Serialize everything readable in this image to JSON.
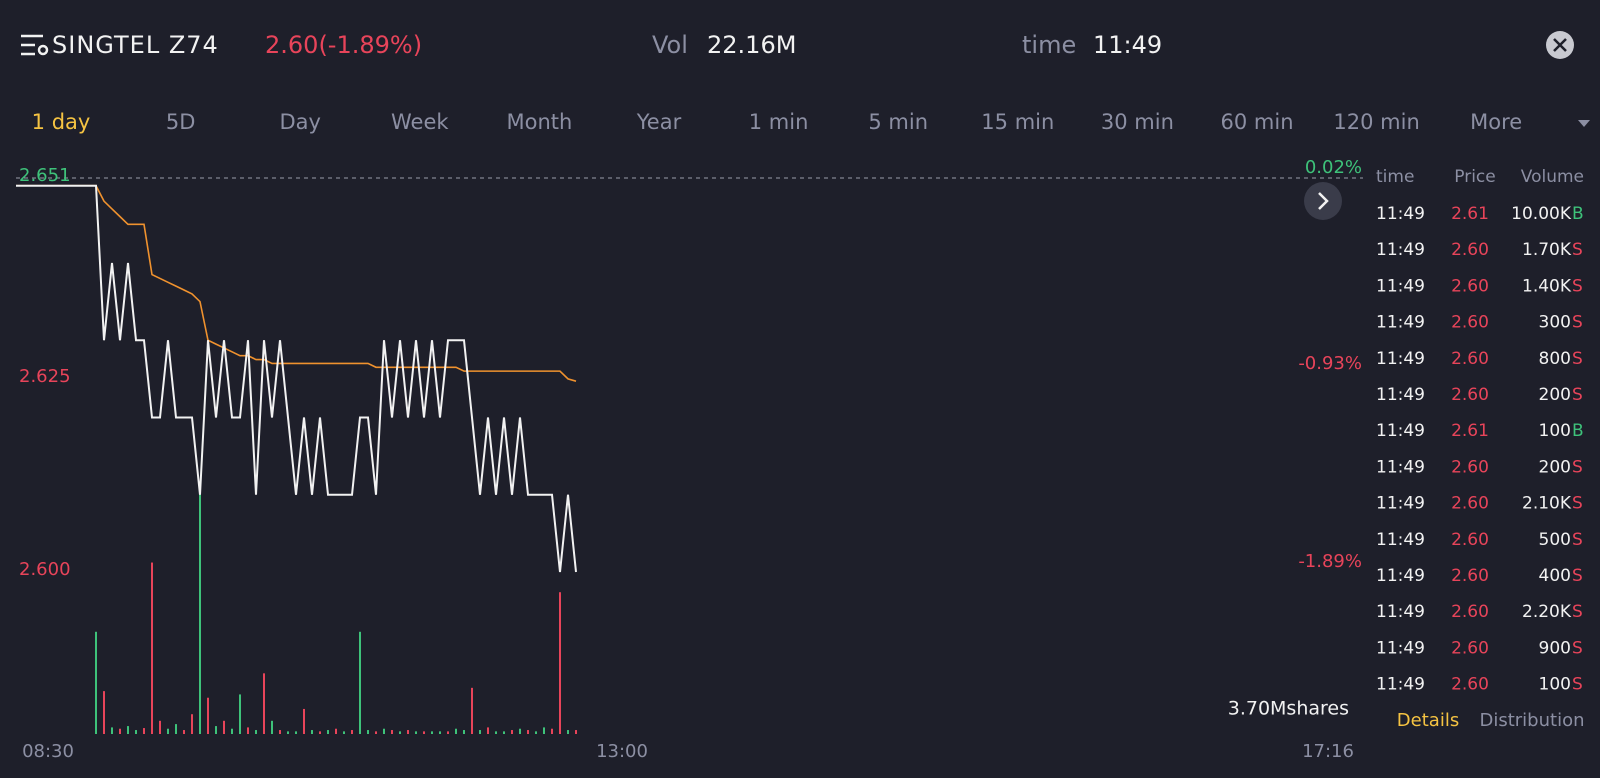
{
  "header": {
    "symbol": "SINGTEL Z74",
    "quote": "2.60(-1.89%)",
    "vol_label": "Vol",
    "vol_value": "22.16M",
    "time_label": "time",
    "time_value": "11:49"
  },
  "tabs": [
    "1 day",
    "5D",
    "Day",
    "Week",
    "Month",
    "Year",
    "1 min",
    "5 min",
    "15 min",
    "30 min",
    "60 min",
    "120 min",
    "More"
  ],
  "active_tab": 0,
  "chart": {
    "type": "line",
    "ylim": [
      2.6,
      2.651
    ],
    "yticks": [
      2.651,
      2.625,
      {
        "value": 2.6,
        "label": "2.600"
      }
    ],
    "y2lim": [
      -1.89,
      0.02
    ],
    "y2ticks": [
      {
        "value": 0.02,
        "label": "0.02%"
      },
      {
        "value": -0.93,
        "label": "-0.93%"
      },
      {
        "value": -1.89,
        "label": "-1.89%"
      }
    ],
    "time_labels": [
      "08:30",
      "13:00",
      "17:16"
    ],
    "volume_max": {
      "value": 3700000,
      "label": "3.70Mshares"
    },
    "series": [
      {
        "name": "price",
        "color": "#f2f2f2",
        "values": [
          2.65,
          2.65,
          2.65,
          2.65,
          2.65,
          2.65,
          2.65,
          2.65,
          2.65,
          2.65,
          2.65,
          2.63,
          2.64,
          2.63,
          2.64,
          2.63,
          2.63,
          2.62,
          2.62,
          2.63,
          2.62,
          2.62,
          2.62,
          2.61,
          2.63,
          2.62,
          2.63,
          2.62,
          2.62,
          2.63,
          2.61,
          2.63,
          2.62,
          2.63,
          2.62,
          2.61,
          2.62,
          2.61,
          2.62,
          2.61,
          2.61,
          2.61,
          2.61,
          2.62,
          2.62,
          2.61,
          2.63,
          2.62,
          2.63,
          2.62,
          2.63,
          2.62,
          2.63,
          2.62,
          2.63,
          2.63,
          2.63,
          2.62,
          2.61,
          2.62,
          2.61,
          2.62,
          2.61,
          2.62,
          2.61,
          2.61,
          2.61,
          2.61,
          2.6,
          2.61,
          2.6
        ]
      },
      {
        "name": "average",
        "color": "#f0922e",
        "values": [
          2.65,
          2.65,
          2.65,
          2.65,
          2.65,
          2.65,
          2.65,
          2.65,
          2.65,
          2.65,
          2.65,
          2.648,
          2.647,
          2.646,
          2.645,
          2.645,
          2.645,
          2.6385,
          2.638,
          2.6375,
          2.637,
          2.6365,
          2.636,
          2.635,
          2.63,
          2.6295,
          2.629,
          2.6285,
          2.628,
          2.628,
          2.6275,
          2.6275,
          2.627,
          2.627,
          2.627,
          2.627,
          2.627,
          2.627,
          2.627,
          2.627,
          2.627,
          2.627,
          2.627,
          2.627,
          2.627,
          2.6265,
          2.6265,
          2.6265,
          2.6265,
          2.6265,
          2.6265,
          2.6265,
          2.6265,
          2.6265,
          2.6265,
          2.6265,
          2.626,
          2.626,
          2.626,
          2.626,
          2.626,
          2.626,
          2.626,
          2.626,
          2.626,
          2.626,
          2.626,
          2.626,
          2.626,
          2.625,
          2.6247
        ]
      }
    ],
    "volume": {
      "up_color": "#3ec27a",
      "down_color": "#e8445a",
      "values": [
        0,
        0,
        0,
        0,
        0,
        0,
        0,
        0,
        0,
        0,
        1550000,
        650000,
        100000,
        80000,
        120000,
        60000,
        90000,
        2600000,
        200000,
        80000,
        150000,
        60000,
        300000,
        3700000,
        550000,
        120000,
        200000,
        80000,
        600000,
        100000,
        60000,
        920000,
        200000,
        60000,
        40000,
        40000,
        380000,
        60000,
        40000,
        60000,
        80000,
        40000,
        60000,
        1550000,
        60000,
        40000,
        80000,
        60000,
        40000,
        60000,
        40000,
        40000,
        40000,
        40000,
        40000,
        80000,
        60000,
        700000,
        60000,
        100000,
        40000,
        40000,
        60000,
        80000,
        60000,
        40000,
        100000,
        80000,
        2150000,
        60000,
        60000
      ],
      "up": [
        true,
        true,
        true,
        true,
        true,
        true,
        true,
        true,
        true,
        true,
        true,
        false,
        true,
        false,
        true,
        true,
        false,
        false,
        false,
        true,
        true,
        false,
        false,
        true,
        false,
        true,
        false,
        true,
        true,
        false,
        true,
        false,
        true,
        false,
        true,
        true,
        false,
        true,
        false,
        true,
        false,
        true,
        false,
        true,
        true,
        false,
        true,
        false,
        true,
        false,
        true,
        false,
        true,
        true,
        false,
        true,
        true,
        false,
        true,
        false,
        true,
        true,
        false,
        true,
        false,
        true,
        true,
        false,
        false,
        true,
        false
      ]
    }
  },
  "trades": {
    "headers": [
      "time",
      "Price",
      "Volume"
    ],
    "rows": [
      [
        "11:49",
        "2.61",
        "10.00K",
        "B"
      ],
      [
        "11:49",
        "2.60",
        "1.70K",
        "S"
      ],
      [
        "11:49",
        "2.60",
        "1.40K",
        "S"
      ],
      [
        "11:49",
        "2.60",
        "300",
        "S"
      ],
      [
        "11:49",
        "2.60",
        "800",
        "S"
      ],
      [
        "11:49",
        "2.60",
        "200",
        "S"
      ],
      [
        "11:49",
        "2.61",
        "100",
        "B"
      ],
      [
        "11:49",
        "2.60",
        "200",
        "S"
      ],
      [
        "11:49",
        "2.60",
        "2.10K",
        "S"
      ],
      [
        "11:49",
        "2.60",
        "500",
        "S"
      ],
      [
        "11:49",
        "2.60",
        "400",
        "S"
      ],
      [
        "11:49",
        "2.60",
        "2.20K",
        "S"
      ],
      [
        "11:49",
        "2.60",
        "900",
        "S"
      ],
      [
        "11:49",
        "2.60",
        "100",
        "S"
      ]
    ],
    "footer": [
      "Details",
      "Distribution"
    ]
  }
}
